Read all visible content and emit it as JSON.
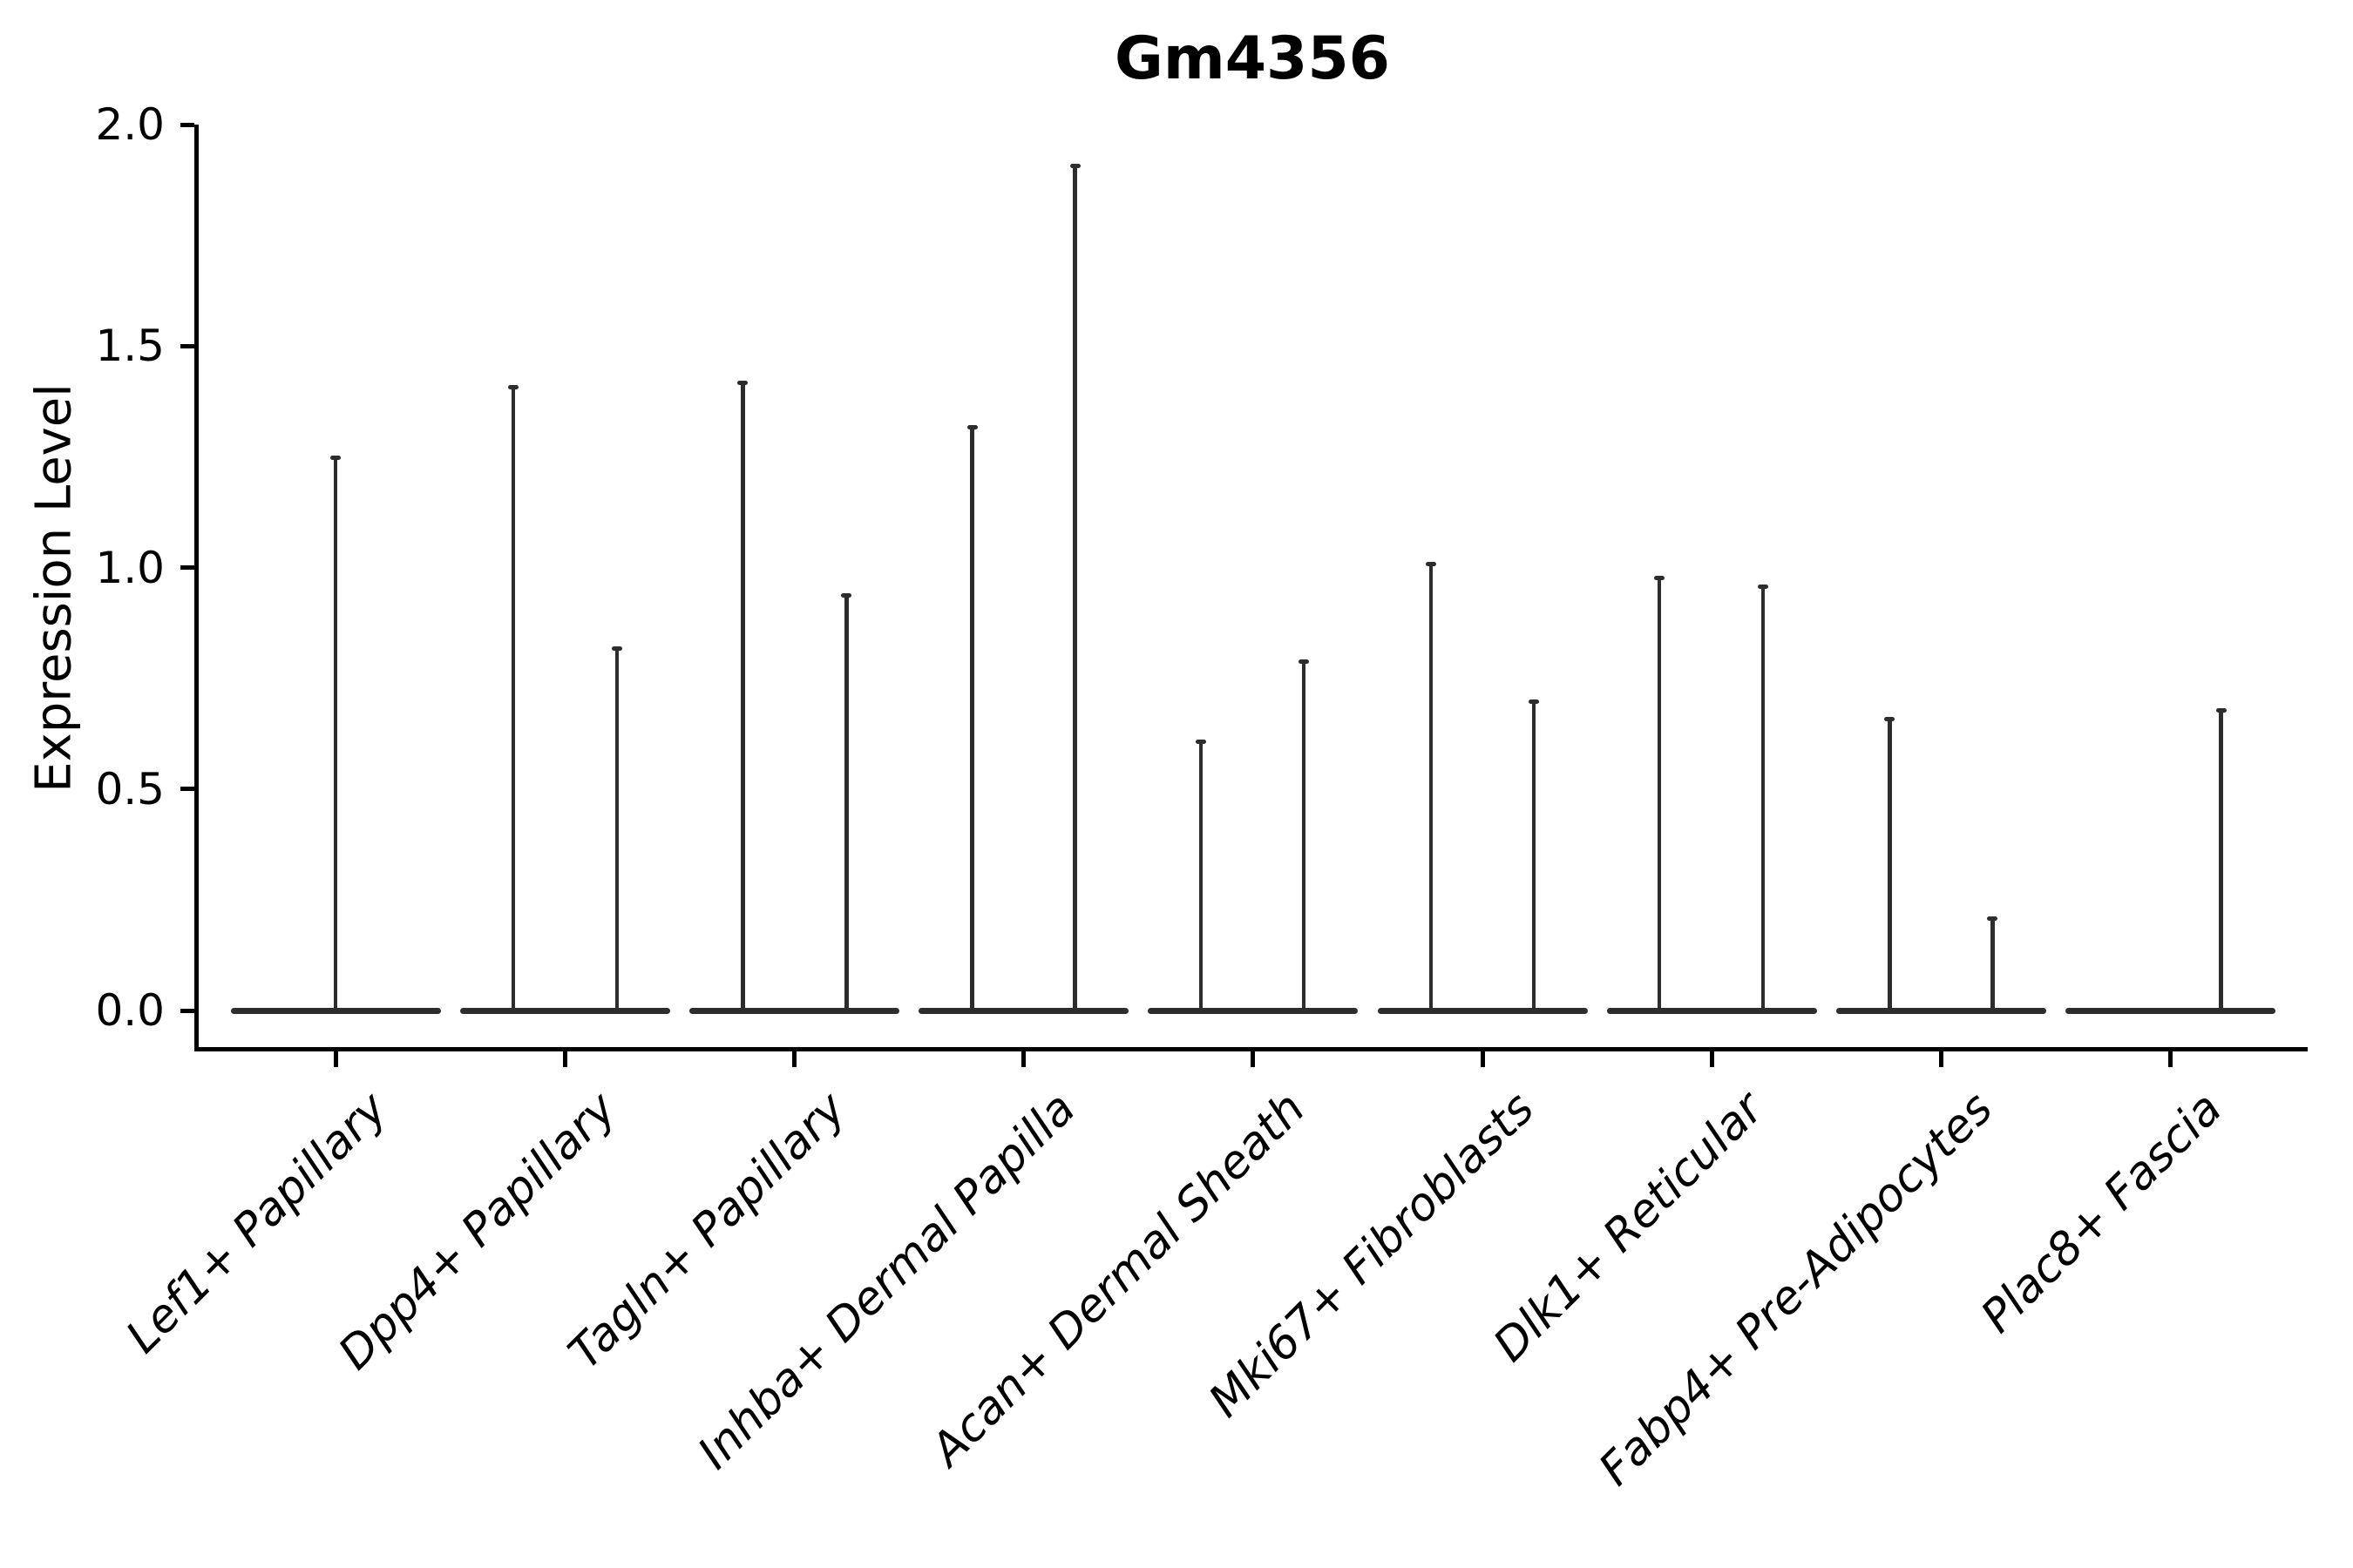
{
  "figure": {
    "title": "Gm4356",
    "ylabel": "Expression Level"
  },
  "chart_data": {
    "type": "violin",
    "title": "Gm4356",
    "xlabel": "",
    "ylabel": "Expression Level",
    "ytick_labels": [
      "0.0",
      "0.5",
      "1.0",
      "1.5",
      "2.0"
    ],
    "ytick_values": [
      0.0,
      0.5,
      1.0,
      1.5,
      2.0
    ],
    "ylim": [
      -0.09,
      2.09
    ],
    "grid": false,
    "legend": "none",
    "line_color": "#2d2d2d",
    "baseline_value": 0,
    "description": "Each category shows violin(s) with dense mass at expression 0 (flat base) and a thin extrema spike up to the max expression value.",
    "categories": [
      {
        "label": "Lef1+ Papillary",
        "violins": [
          {
            "offset": 0,
            "max": 1.25
          }
        ]
      },
      {
        "label": "Dpp4+ Papillary",
        "violins": [
          {
            "offset": -59,
            "max": 1.41
          },
          {
            "offset": 60,
            "max": 0.82
          }
        ]
      },
      {
        "label": "Tagln+ Papillary",
        "violins": [
          {
            "offset": -59,
            "max": 1.42
          },
          {
            "offset": 60,
            "max": 0.94
          }
        ]
      },
      {
        "label": "Inhba+ Dermal Papilla",
        "violins": [
          {
            "offset": -59,
            "max": 1.32
          },
          {
            "offset": 59,
            "max": 1.91
          }
        ]
      },
      {
        "label": "Acan+ Dermal Sheath",
        "violins": [
          {
            "offset": -60,
            "max": 0.61
          },
          {
            "offset": 58,
            "max": 0.79
          }
        ]
      },
      {
        "label": "Mki67+ Fibroblasts",
        "violins": [
          {
            "offset": -59,
            "max": 1.01
          },
          {
            "offset": 59,
            "max": 0.7
          }
        ]
      },
      {
        "label": "Dlk1+ Reticular",
        "violins": [
          {
            "offset": -60,
            "max": 0.98
          },
          {
            "offset": 59,
            "max": 0.96
          }
        ]
      },
      {
        "label": "Fabp4+ Pre-Adipocytes",
        "violins": [
          {
            "offset": -59,
            "max": 0.66
          },
          {
            "offset": 59,
            "max": 0.21
          }
        ]
      },
      {
        "label": "Plac8+ Fascia",
        "violins": [
          {
            "offset": 58,
            "max": 0.68
          }
        ]
      }
    ]
  }
}
